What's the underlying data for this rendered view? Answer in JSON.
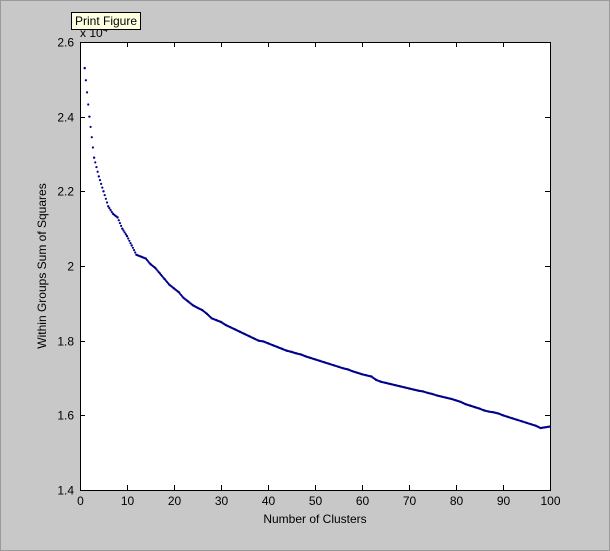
{
  "tooltip": {
    "label": "Print Figure"
  },
  "axis_multiplier": {
    "base": "x 10",
    "exponent": "4"
  },
  "chart_data": {
    "type": "scatter",
    "title": "",
    "xlabel": "Number of Clusters",
    "ylabel": "Within Groups Sum of Squares",
    "xlim": [
      0,
      100
    ],
    "ylim": [
      14000,
      26000
    ],
    "xticks": [
      0,
      10,
      20,
      30,
      40,
      50,
      60,
      70,
      80,
      90,
      100
    ],
    "yticks": [
      14000,
      16000,
      18000,
      20000,
      22000,
      24000,
      26000
    ],
    "ytick_labels": [
      "1.4",
      "1.6",
      "1.8",
      "2",
      "2.2",
      "2.4",
      "2.6"
    ],
    "grid": false,
    "marker_color": "#00008b",
    "background_color": "#ffffff",
    "series": [
      {
        "x": [
          1,
          2,
          3,
          4,
          5,
          6,
          7,
          8,
          9,
          10,
          11,
          12,
          13,
          14,
          15,
          16,
          17,
          18,
          19,
          20,
          21,
          22,
          23,
          24,
          25,
          26,
          27,
          28,
          29,
          30,
          31,
          32,
          33,
          34,
          35,
          36,
          37,
          38,
          39,
          40,
          41,
          42,
          43,
          44,
          45,
          46,
          47,
          48,
          49,
          50,
          51,
          52,
          53,
          54,
          55,
          56,
          57,
          58,
          59,
          60,
          61,
          62,
          63,
          64,
          65,
          66,
          67,
          68,
          69,
          70,
          71,
          72,
          73,
          74,
          75,
          76,
          77,
          78,
          79,
          80,
          81,
          82,
          83,
          84,
          85,
          86,
          87,
          88,
          89,
          90,
          91,
          92,
          93,
          94,
          95,
          96,
          97,
          98,
          99,
          100
        ],
        "y": [
          25300,
          24000,
          22900,
          22400,
          22000,
          21600,
          21400,
          21300,
          21000,
          20800,
          20550,
          20300,
          20250,
          20200,
          20050,
          19950,
          19800,
          19650,
          19500,
          19400,
          19300,
          19150,
          19050,
          18950,
          18880,
          18820,
          18720,
          18600,
          18550,
          18500,
          18420,
          18360,
          18300,
          18240,
          18180,
          18120,
          18060,
          18000,
          17980,
          17930,
          17880,
          17830,
          17780,
          17730,
          17700,
          17660,
          17630,
          17580,
          17540,
          17500,
          17460,
          17420,
          17380,
          17340,
          17300,
          17260,
          17230,
          17180,
          17140,
          17100,
          17070,
          17040,
          16950,
          16900,
          16870,
          16840,
          16810,
          16780,
          16750,
          16720,
          16690,
          16660,
          16640,
          16600,
          16570,
          16530,
          16500,
          16470,
          16440,
          16400,
          16360,
          16300,
          16260,
          16220,
          16180,
          16130,
          16100,
          16080,
          16050,
          16000,
          15960,
          15920,
          15880,
          15840,
          15800,
          15760,
          15720,
          15660,
          15680,
          15700
        ]
      }
    ]
  }
}
